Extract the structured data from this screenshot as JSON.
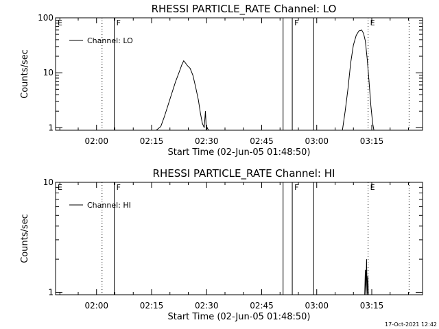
{
  "chart_data": [
    {
      "type": "line",
      "title": "RHESSI PARTICLE_RATE Channel: LO",
      "xlabel": "Start Time (02-Jun-05 01:48:50)",
      "ylabel": "Counts/sec",
      "y_scale": "log",
      "ylim": [
        0.9,
        100
      ],
      "xlim": [
        "01:48:50",
        "03:28:50"
      ],
      "x_ticks": [
        "02:00",
        "02:15",
        "02:30",
        "02:45",
        "03:00",
        "03:15"
      ],
      "y_ticks": [
        "1",
        "10",
        "100"
      ],
      "grid": false,
      "legend": {
        "placement": "top-left",
        "entries": [
          "Channel: LO"
        ]
      },
      "series": [
        {
          "name": "Channel: LO",
          "x": [
            "02:16:15",
            "02:17:30",
            "02:18:30",
            "02:19:30",
            "02:20:30",
            "02:21:30",
            "02:22:30",
            "02:23:15",
            "02:23:45",
            "02:24:15",
            "02:24:45",
            "02:25:30",
            "02:26:15",
            "02:27:00",
            "02:27:45",
            "02:28:20",
            "02:28:50",
            "02:29:20",
            "02:29:40",
            "02:29:55",
            "02:30:10",
            "02:30:30",
            "02:30:45",
            "03:07:00",
            "03:07:45",
            "03:08:30",
            "03:09:15",
            "03:10:00",
            "03:10:45",
            "03:11:30",
            "03:12:15",
            "03:12:45",
            "03:13:15",
            "03:13:45",
            "03:14:15",
            "03:14:45",
            "03:15:15",
            "03:15:35"
          ],
          "y": [
            0.9,
            1.05,
            1.6,
            2.6,
            4.2,
            6.8,
            10.2,
            14.0,
            16.5,
            15.0,
            13.5,
            12.0,
            9.0,
            5.5,
            3.2,
            1.8,
            1.2,
            1.0,
            2.0,
            0.9,
            1.0,
            0.9,
            0.9,
            0.9,
            2.0,
            5.0,
            15.0,
            32.0,
            48.0,
            58.0,
            60.0,
            52.0,
            38.0,
            18.0,
            7.0,
            2.5,
            1.2,
            0.9
          ]
        }
      ],
      "annotations": [
        {
          "label": "E",
          "time": "01:48:50",
          "style": "solid"
        },
        {
          "label": "",
          "time": "02:01:30",
          "style": "dotted"
        },
        {
          "label": "F",
          "time": "02:04:50",
          "style": "solid"
        },
        {
          "label": "",
          "time": "02:50:50",
          "style": "solid"
        },
        {
          "label": "F",
          "time": "02:53:20",
          "style": "solid"
        },
        {
          "label": "",
          "time": "02:59:10",
          "style": "solid"
        },
        {
          "label": "E",
          "time": "03:14:00",
          "style": "dotted"
        },
        {
          "label": "",
          "time": "03:25:10",
          "style": "dotted"
        }
      ]
    },
    {
      "type": "line",
      "title": "RHESSI PARTICLE_RATE Channel: HI",
      "xlabel": "Start Time (02-Jun-05 01:48:50)",
      "ylabel": "Counts/sec",
      "y_scale": "log",
      "ylim": [
        0.95,
        10
      ],
      "xlim": [
        "01:48:50",
        "03:28:50"
      ],
      "x_ticks": [
        "02:00",
        "02:15",
        "02:30",
        "02:45",
        "03:00",
        "03:15"
      ],
      "y_ticks": [
        "1",
        "10"
      ],
      "grid": false,
      "legend": {
        "placement": "top-left",
        "entries": [
          "Channel: HI"
        ]
      },
      "series": [
        {
          "name": "Channel: HI",
          "x": [
            "03:13:05",
            "03:13:15",
            "03:13:25",
            "03:13:35",
            "03:13:45",
            "03:13:55",
            "03:14:05"
          ],
          "y": [
            0.95,
            1.6,
            0.95,
            2.0,
            0.95,
            1.4,
            0.95
          ]
        }
      ],
      "annotations": [
        {
          "label": "E",
          "time": "01:48:50",
          "style": "solid"
        },
        {
          "label": "",
          "time": "02:01:30",
          "style": "dotted"
        },
        {
          "label": "F",
          "time": "02:04:50",
          "style": "solid"
        },
        {
          "label": "",
          "time": "02:50:50",
          "style": "solid"
        },
        {
          "label": "F",
          "time": "02:53:20",
          "style": "solid"
        },
        {
          "label": "",
          "time": "02:59:10",
          "style": "solid"
        },
        {
          "label": "E",
          "time": "03:14:00",
          "style": "dotted"
        },
        {
          "label": "",
          "time": "03:25:10",
          "style": "dotted"
        }
      ]
    }
  ],
  "footer": {
    "timestamp": "17-Oct-2021 12:42"
  }
}
